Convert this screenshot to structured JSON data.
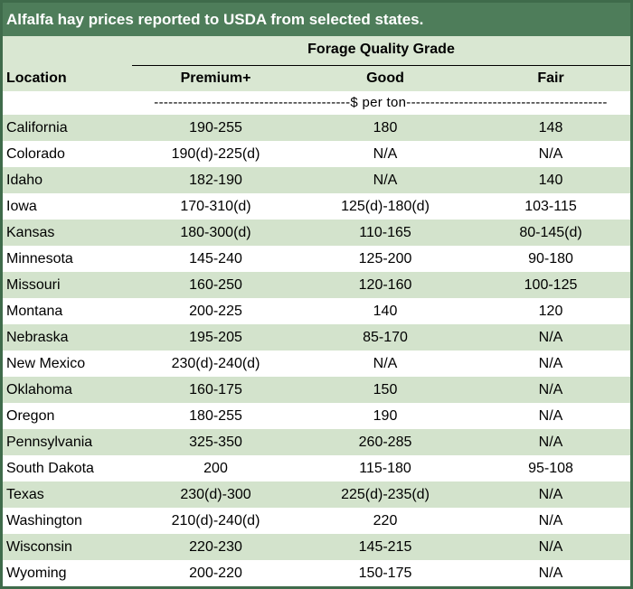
{
  "title": "Alfalfa hay prices reported to USDA from selected states.",
  "header": {
    "group_label": "Forage Quality Grade",
    "location_label": "Location",
    "columns": [
      "Premium+",
      "Good",
      "Fair"
    ],
    "units": "-----------------------------------------$ per ton------------------------------------------"
  },
  "rows": [
    {
      "location": "California",
      "premium": "190-255",
      "good": "180",
      "fair": "148"
    },
    {
      "location": "Colorado",
      "premium": "190(d)-225(d)",
      "good": "N/A",
      "fair": "N/A"
    },
    {
      "location": "Idaho",
      "premium": "182-190",
      "good": "N/A",
      "fair": "140"
    },
    {
      "location": "Iowa",
      "premium": "170-310(d)",
      "good": "125(d)-180(d)",
      "fair": "103-115"
    },
    {
      "location": "Kansas",
      "premium": "180-300(d)",
      "good": "110-165",
      "fair": "80-145(d)"
    },
    {
      "location": "Minnesota",
      "premium": "145-240",
      "good": "125-200",
      "fair": "90-180"
    },
    {
      "location": "Missouri",
      "premium": "160-250",
      "good": "120-160",
      "fair": "100-125"
    },
    {
      "location": "Montana",
      "premium": "200-225",
      "good": "140",
      "fair": "120"
    },
    {
      "location": "Nebraska",
      "premium": "195-205",
      "good": "85-170",
      "fair": "N/A"
    },
    {
      "location": "New Mexico",
      "premium": "230(d)-240(d)",
      "good": "N/A",
      "fair": "N/A"
    },
    {
      "location": "Oklahoma",
      "premium": "160-175",
      "good": "150",
      "fair": "N/A"
    },
    {
      "location": "Oregon",
      "premium": "180-255",
      "good": "190",
      "fair": "N/A"
    },
    {
      "location": "Pennsylvania",
      "premium": "325-350",
      "good": "260-285",
      "fair": "N/A"
    },
    {
      "location": "South Dakota",
      "premium": "200",
      "good": "115-180",
      "fair": "95-108"
    },
    {
      "location": "Texas",
      "premium": "230(d)-300",
      "good": "225(d)-235(d)",
      "fair": "N/A"
    },
    {
      "location": "Washington",
      "premium": "210(d)-240(d)",
      "good": "220",
      "fair": "N/A"
    },
    {
      "location": "Wisconsin",
      "premium": "220-230",
      "good": "145-215",
      "fair": "N/A"
    },
    {
      "location": "Wyoming",
      "premium": "200-220",
      "good": "150-175",
      "fair": "N/A"
    }
  ],
  "colors": {
    "title_bg": "#4e7d5a",
    "border": "#3f6b4b",
    "band": "#d3e3cc",
    "header_bg": "#d9e7d2"
  }
}
